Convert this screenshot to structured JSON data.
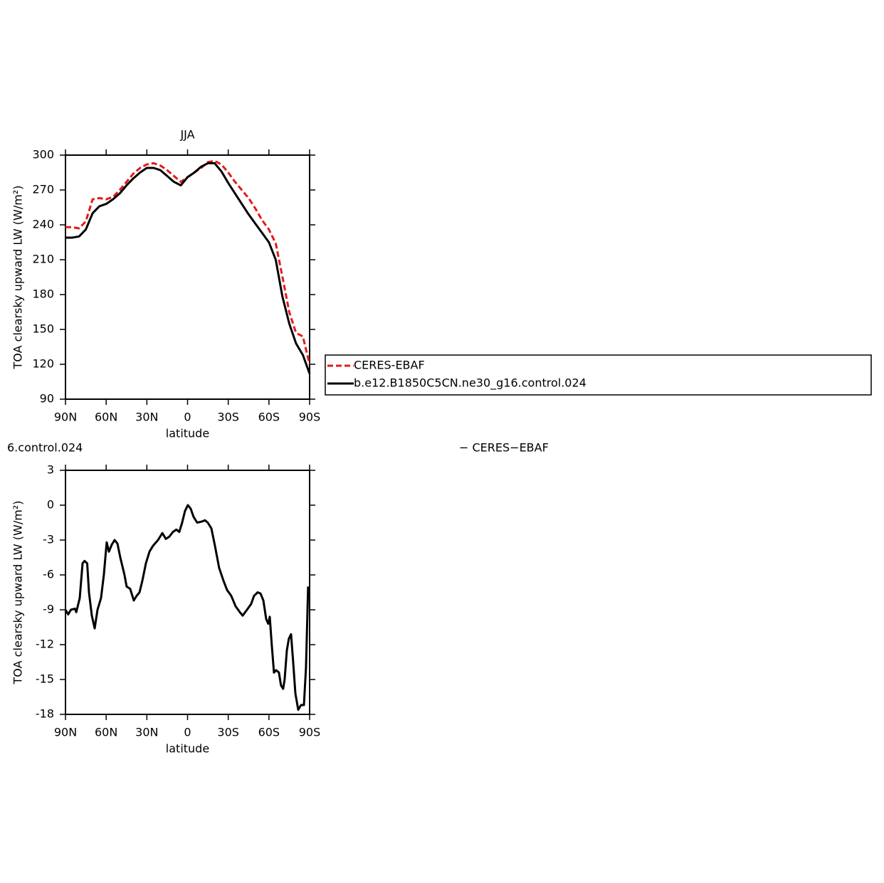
{
  "chart_data": [
    {
      "type": "line",
      "title": "JJA",
      "x_label": "latitude",
      "y_label": "TOA clearsky upward LW (W/m²)",
      "xlim": [
        90,
        -90
      ],
      "ylim": [
        90,
        300
      ],
      "xticks": [
        {
          "value": 90,
          "label": "90N"
        },
        {
          "value": 60,
          "label": "60N"
        },
        {
          "value": 30,
          "label": "30N"
        },
        0,
        {
          "value": -30,
          "label": "30S"
        },
        {
          "value": -60,
          "label": "60S"
        },
        {
          "value": -90,
          "label": "90S"
        }
      ],
      "yticks": [
        90,
        120,
        150,
        180,
        210,
        240,
        270,
        300
      ],
      "legend": "right",
      "x": [
        90,
        85,
        80,
        75,
        70,
        65,
        60,
        55,
        50,
        45,
        40,
        35,
        30,
        25,
        20,
        15,
        10,
        5,
        0,
        -5,
        -10,
        -15,
        -20,
        -25,
        -30,
        -35,
        -40,
        -45,
        -50,
        -55,
        -60,
        -65,
        -70,
        -75,
        -80,
        -85,
        -90
      ],
      "series": [
        {
          "name": "CERES-EBAF",
          "color": "#e41a1c",
          "line_style": "dashed",
          "values": [
            238,
            238,
            237,
            243,
            262,
            263,
            262,
            264,
            270,
            277,
            284,
            289,
            292,
            293,
            291,
            287,
            282,
            277,
            281,
            285,
            289,
            294,
            295,
            292,
            285,
            277,
            270,
            263,
            254,
            244,
            236,
            224,
            195,
            165,
            147,
            144,
            120
          ]
        },
        {
          "name": "b.e12.B1850C5CN.ne30_g16.control.024",
          "color": "#000000",
          "line_style": "solid",
          "values": [
            229,
            229,
            230,
            236,
            250,
            256,
            258,
            262,
            267,
            274,
            280,
            285,
            289,
            289,
            287,
            282,
            277,
            274,
            281,
            285,
            290,
            293,
            293,
            286,
            276,
            267,
            258,
            249,
            241,
            233,
            225,
            210,
            178,
            155,
            138,
            128,
            112
          ]
        }
      ]
    },
    {
      "type": "line",
      "title": "6.control.024",
      "subtitle": "− CERES−EBAF",
      "x_label": "latitude",
      "y_label": "TOA clearsky upward LW (W/m²)",
      "xlim": [
        90,
        -90
      ],
      "ylim": [
        -18,
        3
      ],
      "xticks": [
        {
          "value": 90,
          "label": "90N"
        },
        {
          "value": 60,
          "label": "60N"
        },
        {
          "value": 30,
          "label": "30N"
        },
        0,
        {
          "value": -30,
          "label": "30S"
        },
        {
          "value": -60,
          "label": "60S"
        },
        {
          "value": -90,
          "label": "90S"
        }
      ],
      "yticks": [
        -18,
        -15,
        -12,
        -9,
        -6,
        -3,
        0,
        3
      ],
      "x": [
        90,
        88,
        86,
        83,
        82,
        79.5,
        77.4,
        76,
        74,
        72.7,
        70.6,
        68.5,
        66.4,
        63.8,
        61.7,
        59.6,
        58,
        55.9,
        53.8,
        51.7,
        49.6,
        46.5,
        44.9,
        42.3,
        39.6,
        37.5,
        35.4,
        33.3,
        30.7,
        28.1,
        25.5,
        21.8,
        18.6,
        16,
        13.4,
        10.8,
        8.2,
        6.1,
        4,
        1.9,
        -0.2,
        -2.3,
        -4.4,
        -7.1,
        -10.7,
        -12.8,
        -14.9,
        -17.6,
        -20.2,
        -23.3,
        -26.5,
        -29.1,
        -32.2,
        -35.4,
        -38.5,
        -40.6,
        -43.8,
        -46.9,
        -49,
        -51.7,
        -53.8,
        -55.9,
        -58,
        -59.5,
        -60.6,
        -62.1,
        -63.7,
        -65.3,
        -67.4,
        -68.9,
        -70.5,
        -71.6,
        -73.2,
        -74.7,
        -76.3,
        -77.9,
        -79.5,
        -81.6,
        -83.7,
        -85.8,
        -87.3,
        -88.9
      ],
      "series": [
        {
          "color": "#000000",
          "line_style": "solid",
          "values": [
            -9.0,
            -9.4,
            -9.0,
            -8.9,
            -9.2,
            -8.0,
            -5.0,
            -4.8,
            -5.0,
            -7.5,
            -9.5,
            -10.6,
            -9.0,
            -8.0,
            -6.0,
            -3.2,
            -4.0,
            -3.4,
            -3.0,
            -3.3,
            -4.5,
            -6.0,
            -7.0,
            -7.2,
            -8.2,
            -7.8,
            -7.5,
            -6.5,
            -5.0,
            -4.0,
            -3.5,
            -3.0,
            -2.4,
            -2.9,
            -2.7,
            -2.3,
            -2.1,
            -2.3,
            -1.5,
            -0.5,
            0.0,
            -0.3,
            -1.0,
            -1.5,
            -1.4,
            -1.3,
            -1.5,
            -2.0,
            -3.5,
            -5.4,
            -6.5,
            -7.3,
            -7.8,
            -8.7,
            -9.2,
            -9.5,
            -9.0,
            -8.5,
            -7.8,
            -7.5,
            -7.6,
            -8.2,
            -9.8,
            -10.2,
            -9.6,
            -12.0,
            -14.4,
            -14.2,
            -14.4,
            -15.5,
            -15.8,
            -15.0,
            -12.5,
            -11.5,
            -11.1,
            -13.5,
            -16.2,
            -17.6,
            -17.2,
            -17.2,
            -14.0,
            -7.0
          ]
        }
      ]
    }
  ]
}
